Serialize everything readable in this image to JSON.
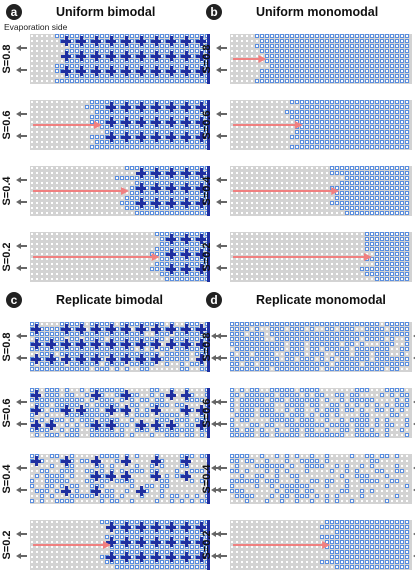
{
  "figure": {
    "note": "Evaporation side",
    "panels": [
      {
        "letter": "a",
        "title": "Uniform bimodal",
        "network": "bimodal",
        "note_visible": true,
        "rows": [
          {
            "s_label": "S=0.8",
            "saturation": 0.8,
            "front_fraction": 0.2,
            "arrow": false,
            "pattern": "uniform"
          },
          {
            "s_label": "S=0.6",
            "saturation": 0.6,
            "front_fraction": 0.4,
            "arrow": true,
            "pattern": "uniform"
          },
          {
            "s_label": "S=0.4",
            "saturation": 0.4,
            "front_fraction": 0.55,
            "arrow": true,
            "pattern": "uniform"
          },
          {
            "s_label": "S=0.2",
            "saturation": 0.2,
            "front_fraction": 0.72,
            "arrow": true,
            "pattern": "uniform"
          }
        ]
      },
      {
        "letter": "b",
        "title": "Uniform monomodal",
        "network": "monomodal",
        "note_visible": false,
        "rows": [
          {
            "s_label": "S=0.8",
            "saturation": 0.8,
            "front_fraction": 0.2,
            "arrow": true,
            "pattern": "uniform"
          },
          {
            "s_label": "S=0.6",
            "saturation": 0.6,
            "front_fraction": 0.4,
            "arrow": true,
            "pattern": "uniform"
          },
          {
            "s_label": "S=0.4",
            "saturation": 0.4,
            "front_fraction": 0.6,
            "arrow": true,
            "pattern": "uniform"
          },
          {
            "s_label": "S=0.2",
            "saturation": 0.2,
            "front_fraction": 0.78,
            "arrow": true,
            "pattern": "uniform"
          }
        ]
      },
      {
        "letter": "c",
        "title": "Replicate bimodal",
        "network": "bimodal",
        "note_visible": false,
        "rows": [
          {
            "s_label": "S=0.8",
            "saturation": 0.8,
            "front_fraction": 0.0,
            "arrow": false,
            "pattern": "replicate"
          },
          {
            "s_label": "S=0.6",
            "saturation": 0.6,
            "front_fraction": 0.0,
            "arrow": false,
            "pattern": "replicate"
          },
          {
            "s_label": "S=0.4",
            "saturation": 0.4,
            "front_fraction": 0.0,
            "arrow": false,
            "pattern": "replicate"
          },
          {
            "s_label": "S=0.2",
            "saturation": 0.2,
            "front_fraction": 0.45,
            "arrow": true,
            "pattern": "uniform"
          }
        ]
      },
      {
        "letter": "d",
        "title": "Replicate monomodal",
        "network": "monomodal",
        "note_visible": false,
        "rows": [
          {
            "s_label": "S=0.8",
            "saturation": 0.8,
            "front_fraction": 0.0,
            "arrow": false,
            "pattern": "replicate"
          },
          {
            "s_label": "S=0.6",
            "saturation": 0.6,
            "front_fraction": 0.0,
            "arrow": false,
            "pattern": "replicate"
          },
          {
            "s_label": "S=0.4",
            "saturation": 0.4,
            "front_fraction": 0.0,
            "arrow": false,
            "pattern": "replicate"
          },
          {
            "s_label": "S=0.2",
            "saturation": 0.2,
            "front_fraction": 0.55,
            "arrow": true,
            "pattern": "uniform"
          }
        ]
      }
    ]
  },
  "colors": {
    "empty_pore": "#d3d3d3",
    "liquid_light": "#5b8fe0",
    "liquid_dark": "#1f2fa0",
    "arrow_red": "#f08080",
    "arrow_gray": "#666666",
    "label_circle": "#222222"
  }
}
